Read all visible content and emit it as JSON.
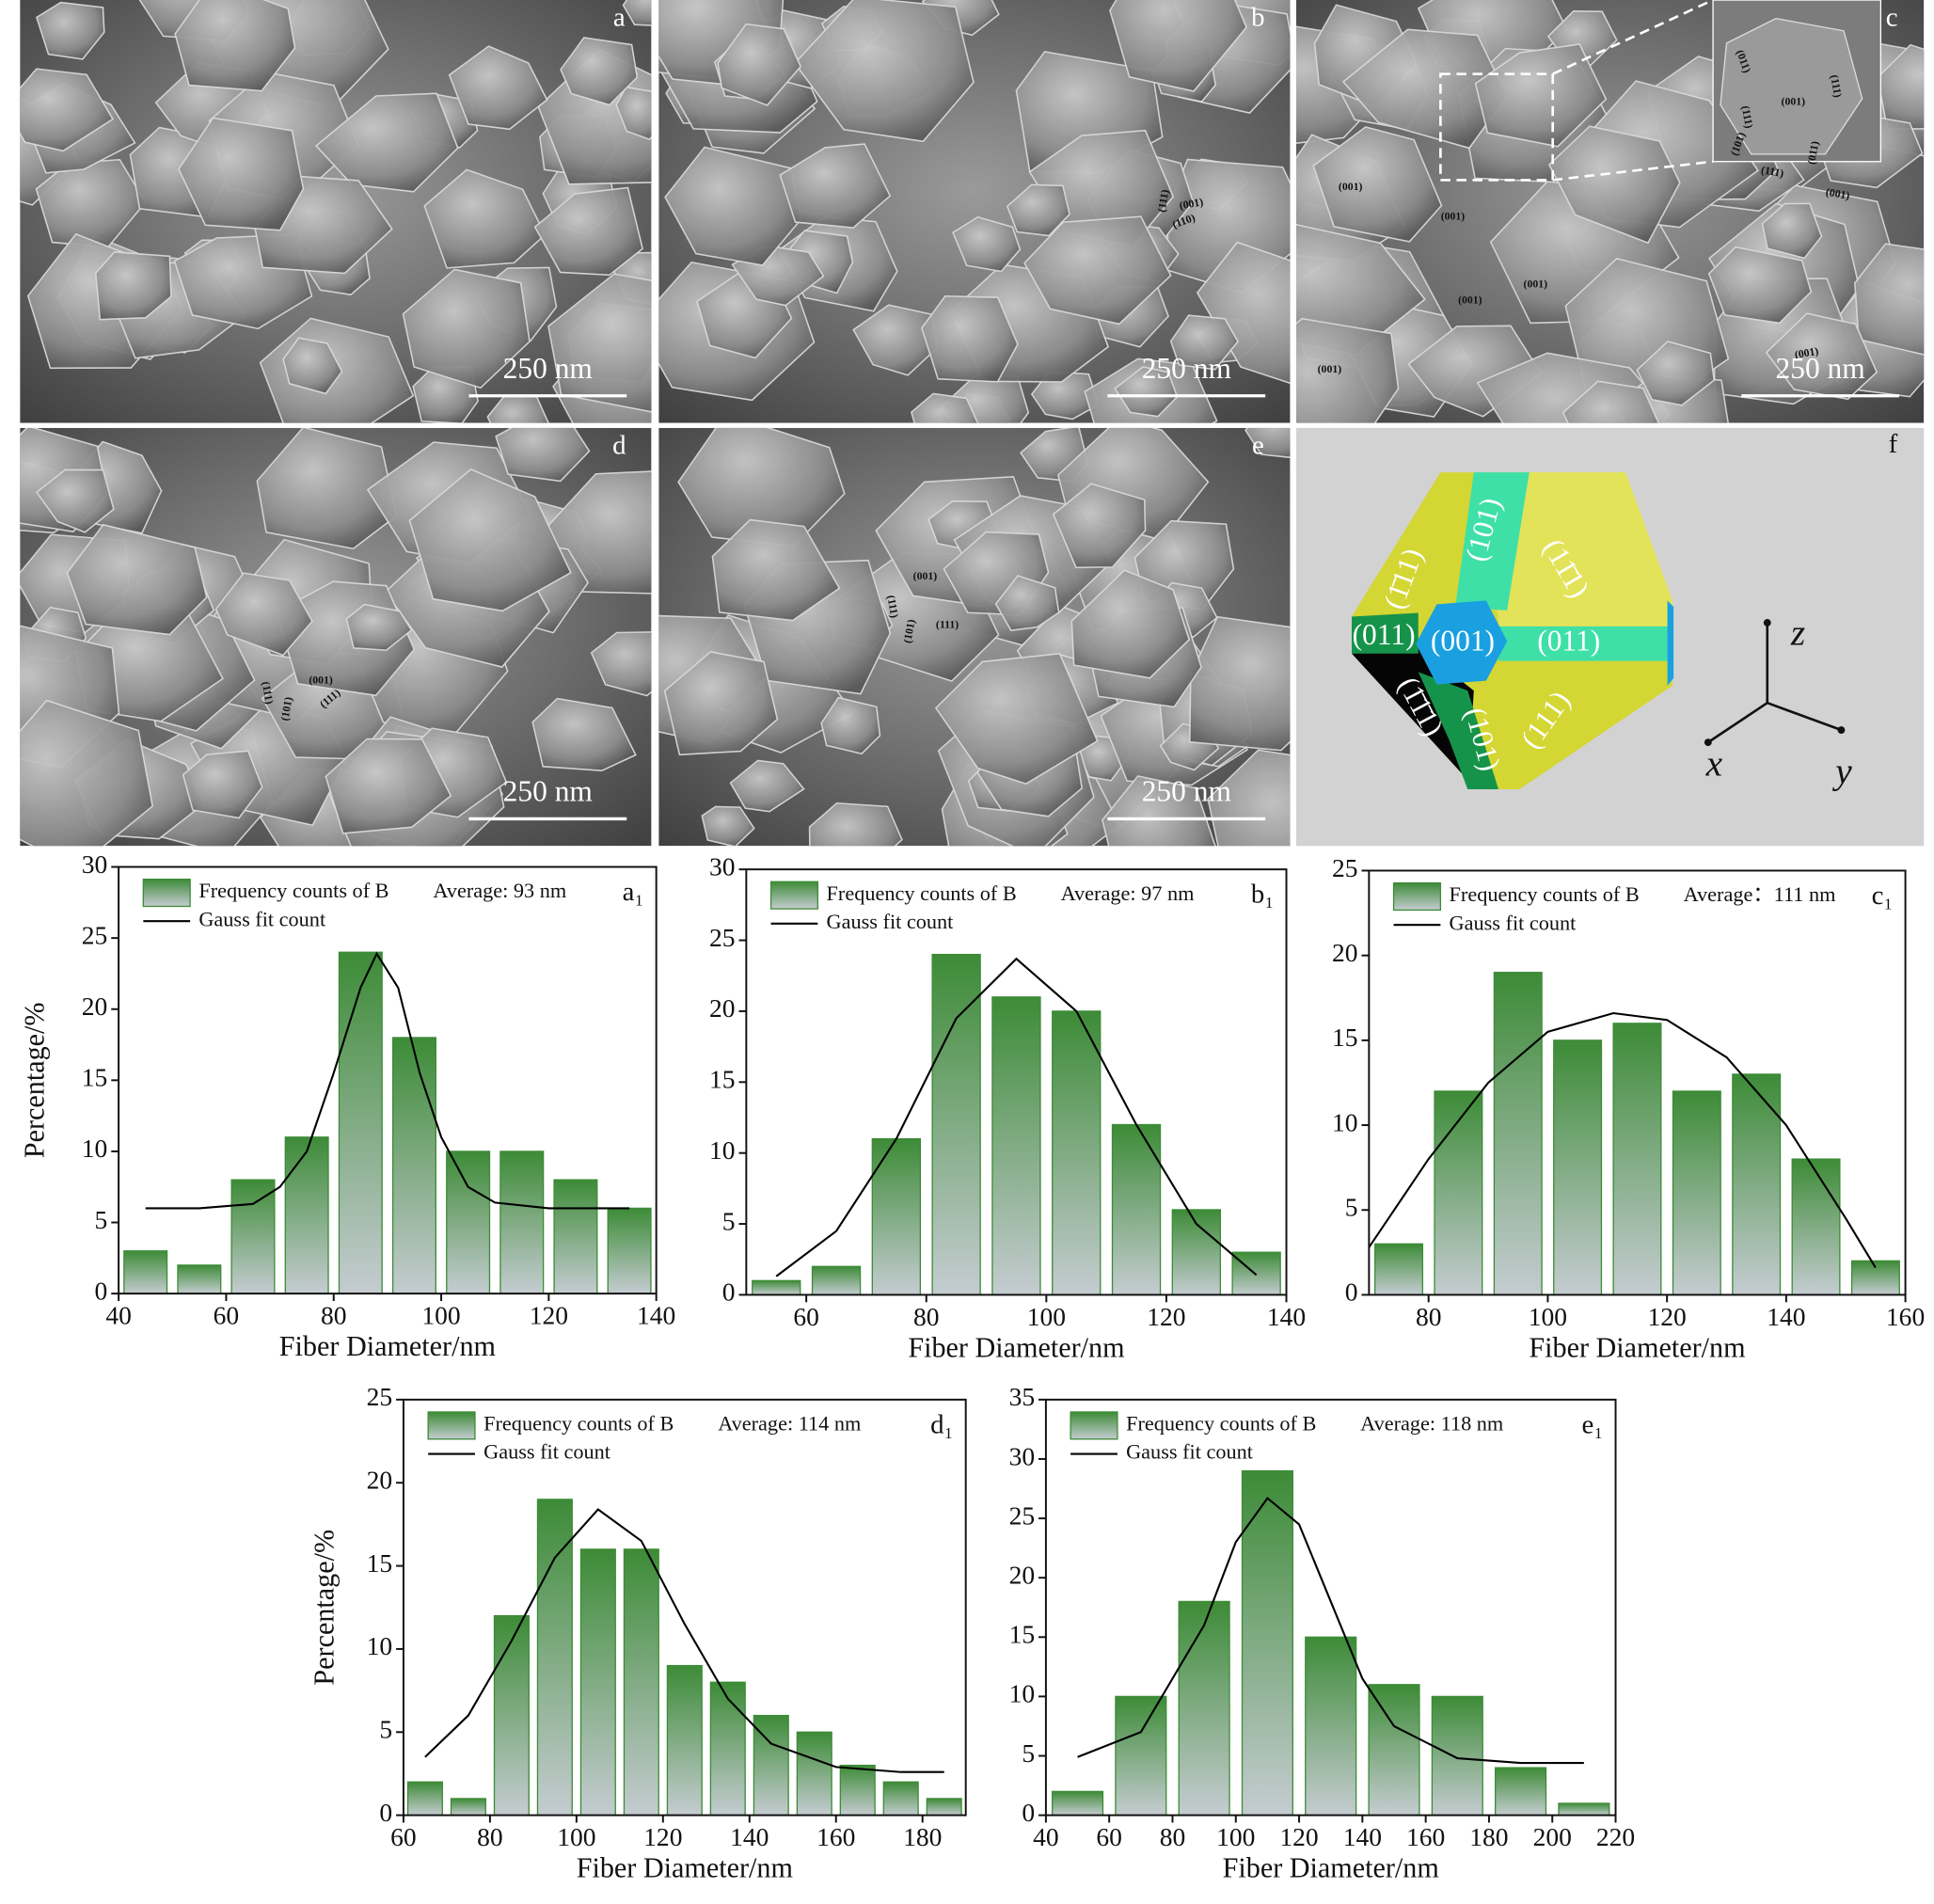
{
  "images": [
    {
      "label": "a",
      "scale_bar": "250 nm",
      "facets": []
    },
    {
      "label": "b",
      "scale_bar": "250 nm",
      "facets": [
        "(111)",
        "(001)",
        "(110)"
      ]
    },
    {
      "label": "c",
      "scale_bar": "250 nm",
      "facets": [
        "(001)",
        "(001)",
        "(001)",
        "(001)",
        "(001)",
        "(001)",
        "(001)"
      ],
      "inset_facets": [
        "(011)",
        "(111)",
        "(001)",
        "(101)",
        "(111)",
        "(011)",
        "(111)"
      ]
    },
    {
      "label": "d",
      "scale_bar": "250 nm",
      "facets": [
        "(111)",
        "(001)",
        "(101)",
        "(111)"
      ]
    },
    {
      "label": "e",
      "scale_bar": "250 nm",
      "facets": [
        "(001)",
        "(111)",
        "(101)",
        "(111)"
      ]
    }
  ],
  "model": {
    "label": "f",
    "facets": [
      "(1̄11)",
      "(101)",
      "(11̄1)",
      "(011)",
      "(001)",
      "(011)",
      "(1̄1̄1)",
      "(101)",
      "(111)"
    ],
    "axes": [
      "z",
      "x",
      "y"
    ]
  },
  "chart_data": [
    {
      "type": "histogram",
      "panel_label": "a₁",
      "annotation": "Average: 93 nm",
      "x_label": "Fiber Diameter/nm",
      "y_label": "Percentage/%",
      "bins": [
        40,
        50,
        60,
        70,
        80,
        90,
        100,
        110,
        120,
        130,
        140
      ],
      "series": [
        {
          "name": "Frequency counts of B",
          "color": "#3d8b37",
          "values": [
            3,
            2,
            8,
            11,
            24,
            18,
            10,
            10,
            8,
            6
          ]
        },
        {
          "name": "Gauss fit count",
          "color": "#000000",
          "type": "line",
          "x": [
            45,
            55,
            65,
            70,
            75,
            80,
            85,
            88,
            92,
            96,
            100,
            105,
            110,
            120,
            135
          ],
          "values": [
            6,
            6,
            6.3,
            7.5,
            10,
            15.5,
            21.5,
            23.9,
            21.5,
            15.5,
            11,
            7.5,
            6.4,
            6,
            6
          ]
        }
      ],
      "xlim": [
        40,
        140
      ],
      "xticks": [
        40,
        60,
        80,
        100,
        120,
        140
      ],
      "ylim": [
        0,
        30
      ],
      "yticks": [
        0,
        5,
        10,
        15,
        20,
        25,
        30
      ]
    },
    {
      "type": "histogram",
      "panel_label": "b₁",
      "annotation": "Average: 97 nm",
      "x_label": "Fiber Diameter/nm",
      "bins": [
        50,
        60,
        70,
        80,
        90,
        100,
        110,
        120,
        130,
        140
      ],
      "series": [
        {
          "name": "Frequency counts of B",
          "color": "#3d8b37",
          "values": [
            1,
            2,
            11,
            24,
            21,
            20,
            12,
            6,
            3
          ]
        },
        {
          "name": "Gauss fit count",
          "color": "#000000",
          "type": "line",
          "x": [
            55,
            65,
            75,
            85,
            95,
            105,
            115,
            125,
            135
          ],
          "values": [
            1.3,
            4.5,
            11,
            19.5,
            23.7,
            20,
            12,
            5,
            1.4
          ]
        }
      ],
      "xlim": [
        50,
        140
      ],
      "xticks": [
        60,
        80,
        100,
        120,
        140
      ],
      "ylim": [
        0,
        30
      ],
      "yticks": [
        0,
        5,
        10,
        15,
        20,
        25,
        30
      ]
    },
    {
      "type": "histogram",
      "panel_label": "c₁",
      "annotation": "Average：111 nm",
      "x_label": "Fiber Diameter/nm",
      "bins": [
        70,
        80,
        90,
        100,
        110,
        120,
        130,
        140,
        150,
        160
      ],
      "series": [
        {
          "name": "Frequency counts of B",
          "color": "#3d8b37",
          "values": [
            3,
            12,
            19,
            15,
            16,
            12,
            13,
            8,
            2
          ]
        },
        {
          "name": "Gauss fit count",
          "color": "#000000",
          "type": "line",
          "x": [
            70,
            80,
            90,
            100,
            111,
            120,
            130,
            140,
            150,
            155
          ],
          "values": [
            2.8,
            8,
            12.5,
            15.5,
            16.6,
            16.2,
            14,
            10,
            4.5,
            1.6
          ]
        }
      ],
      "xlim": [
        70,
        160
      ],
      "xticks": [
        80,
        100,
        120,
        140,
        160
      ],
      "ylim": [
        0,
        25
      ],
      "yticks": [
        0,
        5,
        10,
        15,
        20,
        25
      ]
    },
    {
      "type": "histogram",
      "panel_label": "d₁",
      "annotation": "Average: 114 nm",
      "x_label": "Fiber Diameter/nm",
      "y_label": "Percentage/%",
      "bins": [
        60,
        70,
        80,
        90,
        100,
        110,
        120,
        130,
        140,
        150,
        160,
        170,
        180,
        190
      ],
      "series": [
        {
          "name": "Frequency counts of B",
          "color": "#3d8b37",
          "values": [
            2,
            1,
            12,
            19,
            16,
            16,
            9,
            8,
            6,
            5,
            3,
            2,
            1
          ]
        },
        {
          "name": "Gauss fit count",
          "color": "#000000",
          "type": "line",
          "x": [
            65,
            75,
            85,
            95,
            105,
            115,
            125,
            135,
            145,
            160,
            175,
            185
          ],
          "values": [
            3.5,
            6,
            10.5,
            15.5,
            18.4,
            16.5,
            11.5,
            7,
            4.3,
            2.9,
            2.6,
            2.6
          ]
        }
      ],
      "xlim": [
        60,
        190
      ],
      "xticks": [
        60,
        80,
        100,
        120,
        140,
        160,
        180
      ],
      "ylim": [
        0,
        25
      ],
      "yticks": [
        0,
        5,
        10,
        15,
        20,
        25
      ]
    },
    {
      "type": "histogram",
      "panel_label": "e₁",
      "annotation": "Average: 118 nm",
      "x_label": "Fiber Diameter/nm",
      "bins": [
        40,
        60,
        80,
        100,
        120,
        140,
        160,
        180,
        200,
        220
      ],
      "series": [
        {
          "name": "Frequency counts of B",
          "color": "#3d8b37",
          "values": [
            2,
            10,
            18,
            29,
            15,
            11,
            10,
            4,
            1
          ]
        },
        {
          "name": "Gauss fit count",
          "color": "#000000",
          "type": "line",
          "x": [
            50,
            70,
            90,
            100,
            110,
            120,
            130,
            140,
            150,
            170,
            190,
            210
          ],
          "values": [
            4.9,
            7,
            16,
            23,
            26.7,
            24.5,
            18,
            11.5,
            7.5,
            4.8,
            4.4,
            4.4
          ]
        }
      ],
      "xlim": [
        40,
        220
      ],
      "xticks": [
        40,
        60,
        80,
        100,
        120,
        140,
        160,
        180,
        200,
        220
      ],
      "ylim": [
        0,
        35
      ],
      "yticks": [
        0,
        5,
        10,
        15,
        20,
        25,
        30,
        35
      ]
    }
  ]
}
